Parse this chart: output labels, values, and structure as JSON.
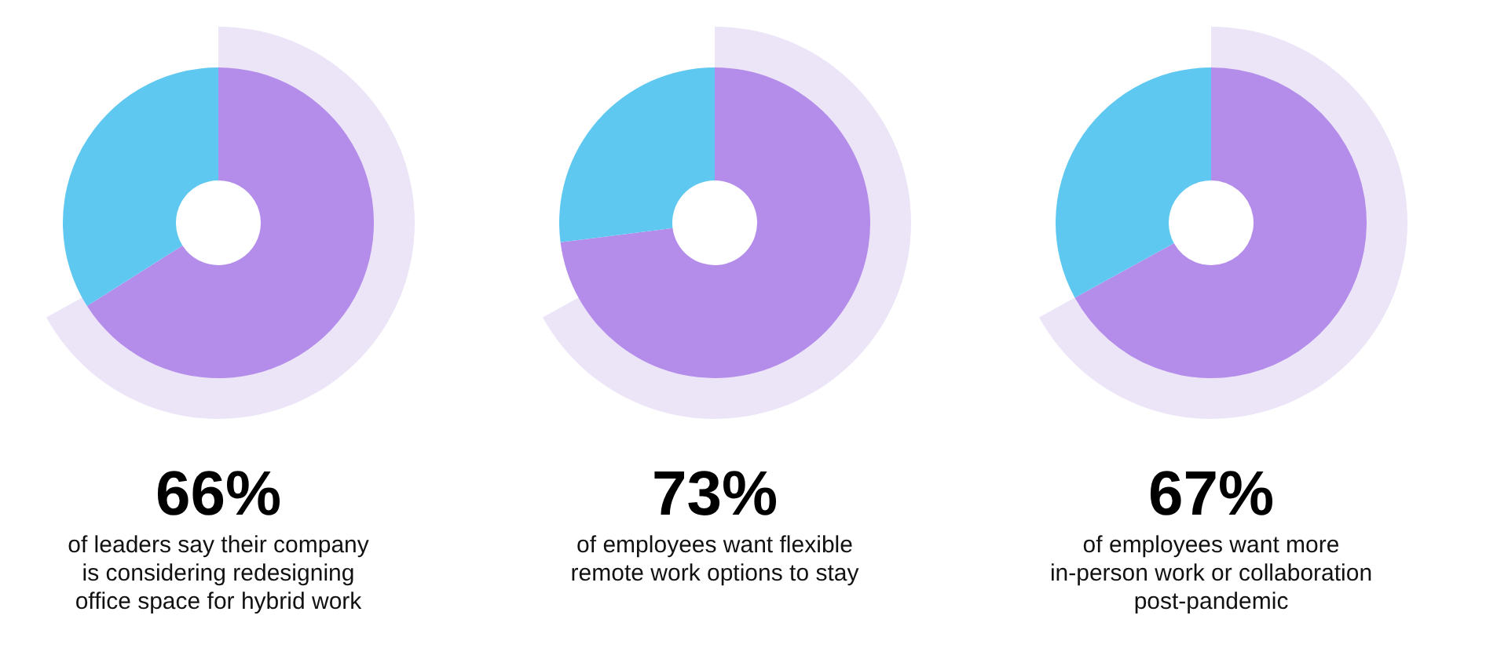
{
  "chart_data": [
    {
      "type": "donut",
      "title": "66%",
      "subtitle": "of leaders say their company\nis considering redesigning\noffice space for hybrid work",
      "categories": [
        null,
        null
      ],
      "values": [
        66,
        34
      ],
      "colors": [
        "#b48dea",
        "#5fc8f0"
      ]
    },
    {
      "type": "donut",
      "title": "73%",
      "subtitle": "of employees want flexible\nremote work options to stay",
      "categories": [
        null,
        null
      ],
      "values": [
        73,
        27
      ],
      "colors": [
        "#b48dea",
        "#5fc8f0"
      ]
    },
    {
      "type": "donut",
      "title": "67%",
      "subtitle": "of employees want more\nin-person work or collaboration\npost-pandemic",
      "categories": [
        null,
        null
      ],
      "values": [
        67,
        33
      ],
      "colors": [
        "#b48dea",
        "#5fc8f0"
      ]
    }
  ]
}
